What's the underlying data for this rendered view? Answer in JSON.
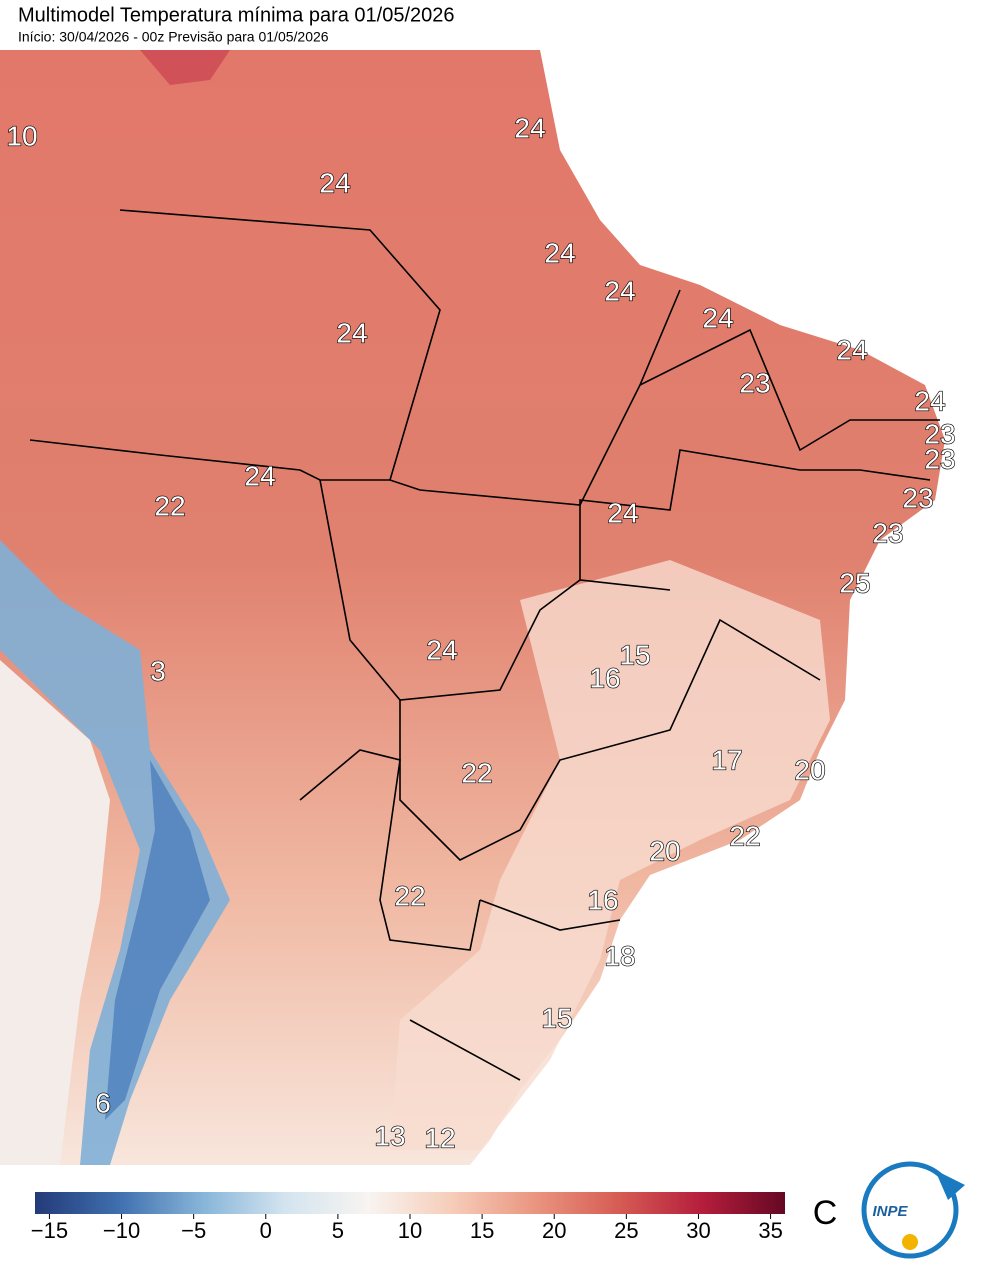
{
  "header": {
    "title": "Multimodel Temperatura mínima para 01/05/2026",
    "subtitle": "Início: 30/04/2026 - 00z  Previsão para 01/05/2026"
  },
  "map": {
    "labels": [
      10,
      24,
      24,
      24,
      24,
      24,
      24,
      24,
      23,
      24,
      23,
      23,
      24,
      22,
      23,
      24,
      23,
      25,
      15,
      3,
      24,
      16,
      17,
      22,
      20,
      22,
      20,
      22,
      16,
      18,
      15,
      6,
      13,
      12
    ]
  },
  "colorbar": {
    "lim": [
      -16,
      36
    ],
    "unit": "C",
    "ticks": [
      {
        "value": -15,
        "label": "−15"
      },
      {
        "value": -10,
        "label": "−10"
      },
      {
        "value": -5,
        "label": "−5"
      },
      0,
      5,
      10,
      15,
      20,
      25,
      30,
      35
    ],
    "colors": [
      "#243a78",
      "#3f6fae",
      "#86b4d8",
      "#d3e4ef",
      "#f8f4f1",
      "#f6cdb9",
      "#ea9580",
      "#d65c54",
      "#b51e3c",
      "#650824"
    ]
  },
  "logo": {
    "text": "INPE"
  }
}
